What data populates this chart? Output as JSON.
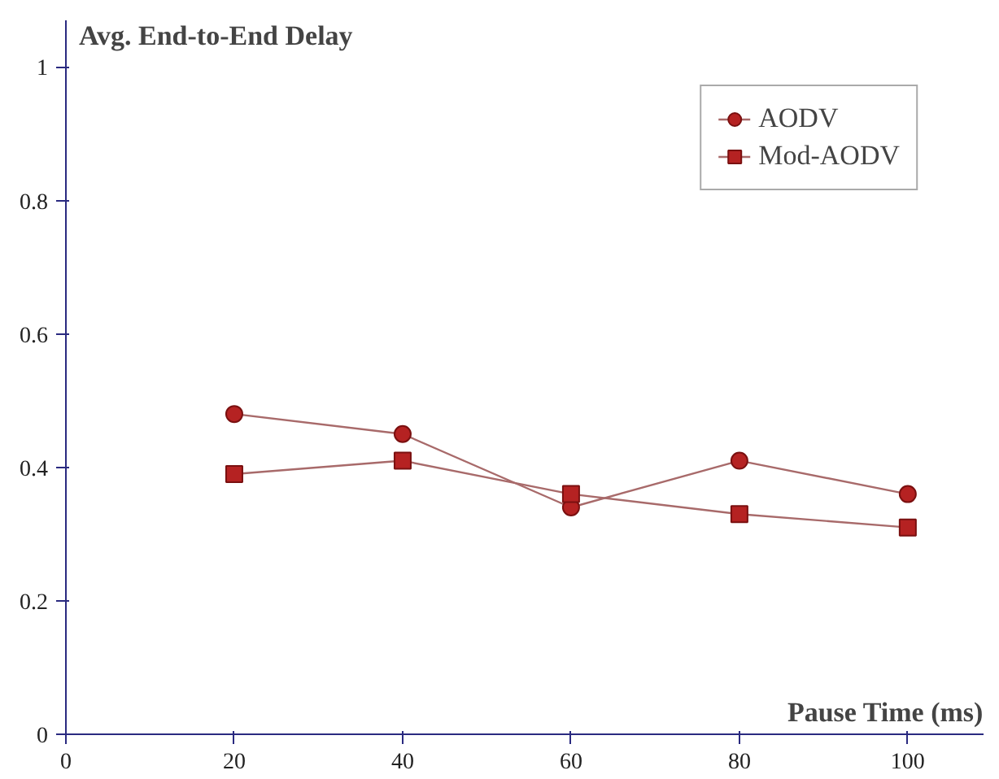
{
  "chart_data": {
    "type": "line",
    "xlabel": "Pause Time (ms)",
    "ylabel": "Avg. End-to-End Delay",
    "x": [
      20,
      40,
      60,
      80,
      100
    ],
    "series": [
      {
        "name": "AODV",
        "color": "#b52222",
        "values": [
          0.48,
          0.45,
          0.34,
          0.41,
          0.36
        ],
        "marker": "circle"
      },
      {
        "name": "Mod-AODV",
        "color": "#b52222",
        "values": [
          0.39,
          0.41,
          0.36,
          0.33,
          0.31
        ],
        "marker": "square"
      }
    ],
    "xlim": [
      0,
      109
    ],
    "ylim": [
      0,
      1.07
    ],
    "xticks": [
      0,
      20,
      40,
      60,
      80,
      100
    ],
    "yticks": [
      0,
      0.2,
      0.4,
      0.6,
      0.8,
      1
    ],
    "grid": false,
    "legend": "top right",
    "line_style": "solid"
  }
}
